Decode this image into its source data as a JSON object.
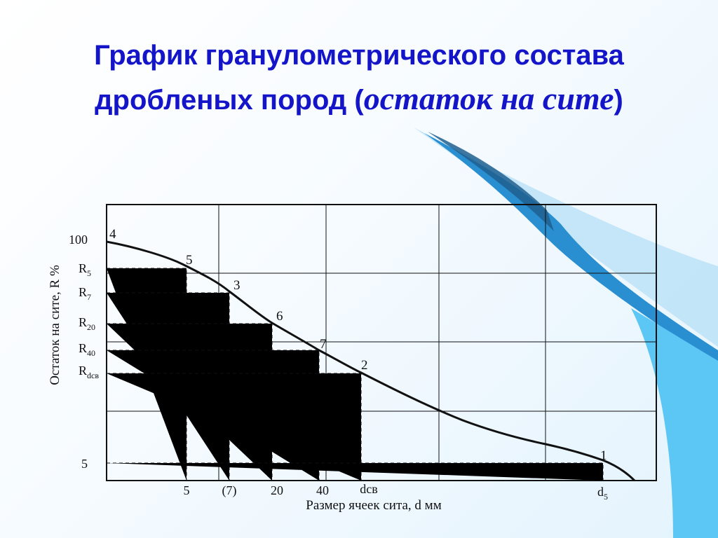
{
  "title": {
    "part1": "График гранулометрического состава дробленых пород (",
    "italic": "остаток на сите",
    "part2": ")"
  },
  "colors": {
    "title": "#1414c8",
    "curve": "#111111",
    "accent_blue": "#2f9fe0"
  },
  "chart_data": {
    "type": "line",
    "title": "График гранулометрического состава дробленых пород (остаток на сите)",
    "xlabel": "Размер ячеек сита, d мм",
    "ylabel": "Остаток на сите, R %",
    "grid": true,
    "x_ticks": [
      {
        "text": "5",
        "sub": ""
      },
      {
        "text": "(7)",
        "sub": ""
      },
      {
        "text": "20",
        "sub": ""
      },
      {
        "text": "40",
        "sub": ""
      },
      {
        "text": "dсв",
        "sub": ""
      },
      {
        "text": "d",
        "sub": "5"
      }
    ],
    "y_ticks": [
      {
        "text": "100",
        "sub": ""
      },
      {
        "text": "R",
        "sub": "5"
      },
      {
        "text": "R",
        "sub": "7"
      },
      {
        "text": "R",
        "sub": "20"
      },
      {
        "text": "R",
        "sub": "40"
      },
      {
        "text": "R",
        "sub": "dсв"
      },
      {
        "text": "5",
        "sub": ""
      }
    ],
    "points": [
      {
        "label": "4",
        "x_tick": null,
        "y_tick": "100"
      },
      {
        "label": "5",
        "x_tick": "5",
        "y_tick": "R5"
      },
      {
        "label": "3",
        "x_tick": "(7)",
        "y_tick": "R7"
      },
      {
        "label": "6",
        "x_tick": "20",
        "y_tick": "R20"
      },
      {
        "label": "7",
        "x_tick": "40",
        "y_tick": "R40"
      },
      {
        "label": "2",
        "x_tick": "dсв",
        "y_tick": "Rdсв"
      },
      {
        "label": "1",
        "x_tick": "d5",
        "y_tick": "5"
      }
    ]
  }
}
